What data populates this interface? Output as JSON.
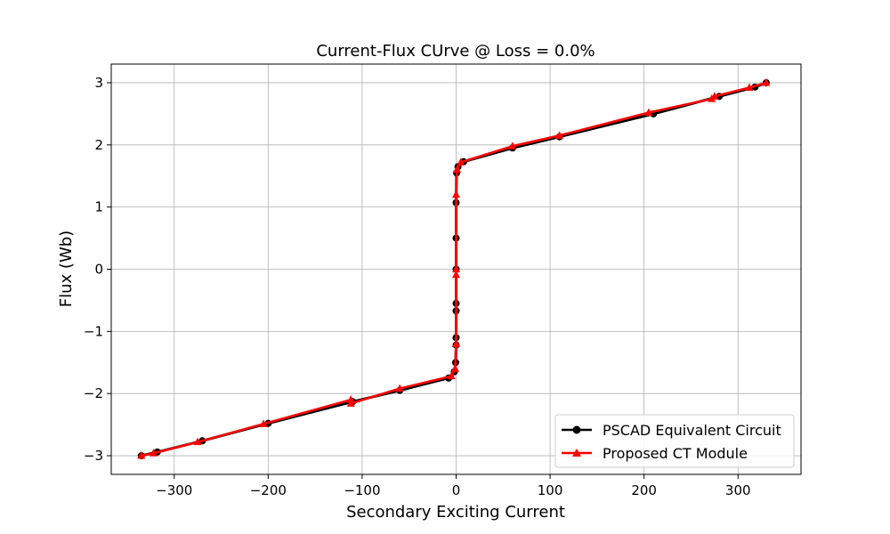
{
  "chart_data": {
    "type": "line",
    "title": "Current-Flux CUrve  @ Loss = 0.0%",
    "xlabel": "Secondary Exciting Current",
    "ylabel": "Flux (Wb)",
    "xlim": [
      -367,
      367
    ],
    "ylim": [
      -3.3,
      3.3
    ],
    "xticks": [
      -300,
      -200,
      -100,
      0,
      100,
      200,
      300
    ],
    "xtick_labels": [
      "−300",
      "−200",
      "−100",
      "0",
      "100",
      "200",
      "300"
    ],
    "yticks": [
      -3,
      -2,
      -1,
      0,
      1,
      2,
      3
    ],
    "ytick_labels": [
      "−3",
      "−2",
      "−1",
      "0",
      "1",
      "2",
      "3"
    ],
    "grid": true,
    "legend_position": "lower-right",
    "series": [
      {
        "name": "PSCAD Equivalent Circuit",
        "color": "#000000",
        "marker": "circle",
        "points": [
          {
            "x": -335,
            "y": -3.0
          },
          {
            "x": -318,
            "y": -2.94
          },
          {
            "x": -270,
            "y": -2.76
          },
          {
            "x": -200,
            "y": -2.48
          },
          {
            "x": -110,
            "y": -2.13
          },
          {
            "x": -60,
            "y": -1.95
          },
          {
            "x": -8,
            "y": -1.75
          },
          {
            "x": -2,
            "y": -1.65
          },
          {
            "x": -0.5,
            "y": -1.5
          },
          {
            "x": 0,
            "y": -1.22
          },
          {
            "x": 0,
            "y": -1.1
          },
          {
            "x": 0,
            "y": -0.67
          },
          {
            "x": 0,
            "y": -0.55
          },
          {
            "x": 0,
            "y": 0.0
          },
          {
            "x": 0,
            "y": 0.5
          },
          {
            "x": 0,
            "y": 1.07
          },
          {
            "x": 0.5,
            "y": 1.55
          },
          {
            "x": 2,
            "y": 1.65
          },
          {
            "x": 8,
            "y": 1.73
          },
          {
            "x": 60,
            "y": 1.95
          },
          {
            "x": 110,
            "y": 2.13
          },
          {
            "x": 210,
            "y": 2.5
          },
          {
            "x": 280,
            "y": 2.78
          },
          {
            "x": 318,
            "y": 2.93
          },
          {
            "x": 330,
            "y": 3.0
          }
        ]
      },
      {
        "name": "Proposed CT Module",
        "color": "#ff0000",
        "marker": "triangle",
        "points": [
          {
            "x": -335,
            "y": -3.0
          },
          {
            "x": -322,
            "y": -2.96
          },
          {
            "x": -275,
            "y": -2.78
          },
          {
            "x": -205,
            "y": -2.49
          },
          {
            "x": -112,
            "y": -2.1
          },
          {
            "x": -112,
            "y": -2.16
          },
          {
            "x": -60,
            "y": -1.92
          },
          {
            "x": -5,
            "y": -1.72
          },
          {
            "x": -1,
            "y": -1.6
          },
          {
            "x": 0,
            "y": -1.2
          },
          {
            "x": 0,
            "y": -0.09
          },
          {
            "x": 0,
            "y": 0.0
          },
          {
            "x": 0,
            "y": 1.2
          },
          {
            "x": 1,
            "y": 1.6
          },
          {
            "x": 5,
            "y": 1.72
          },
          {
            "x": 60,
            "y": 1.98
          },
          {
            "x": 110,
            "y": 2.15
          },
          {
            "x": 205,
            "y": 2.52
          },
          {
            "x": 272,
            "y": 2.74
          },
          {
            "x": 275,
            "y": 2.78
          },
          {
            "x": 312,
            "y": 2.92
          },
          {
            "x": 330,
            "y": 3.0
          }
        ]
      }
    ]
  }
}
